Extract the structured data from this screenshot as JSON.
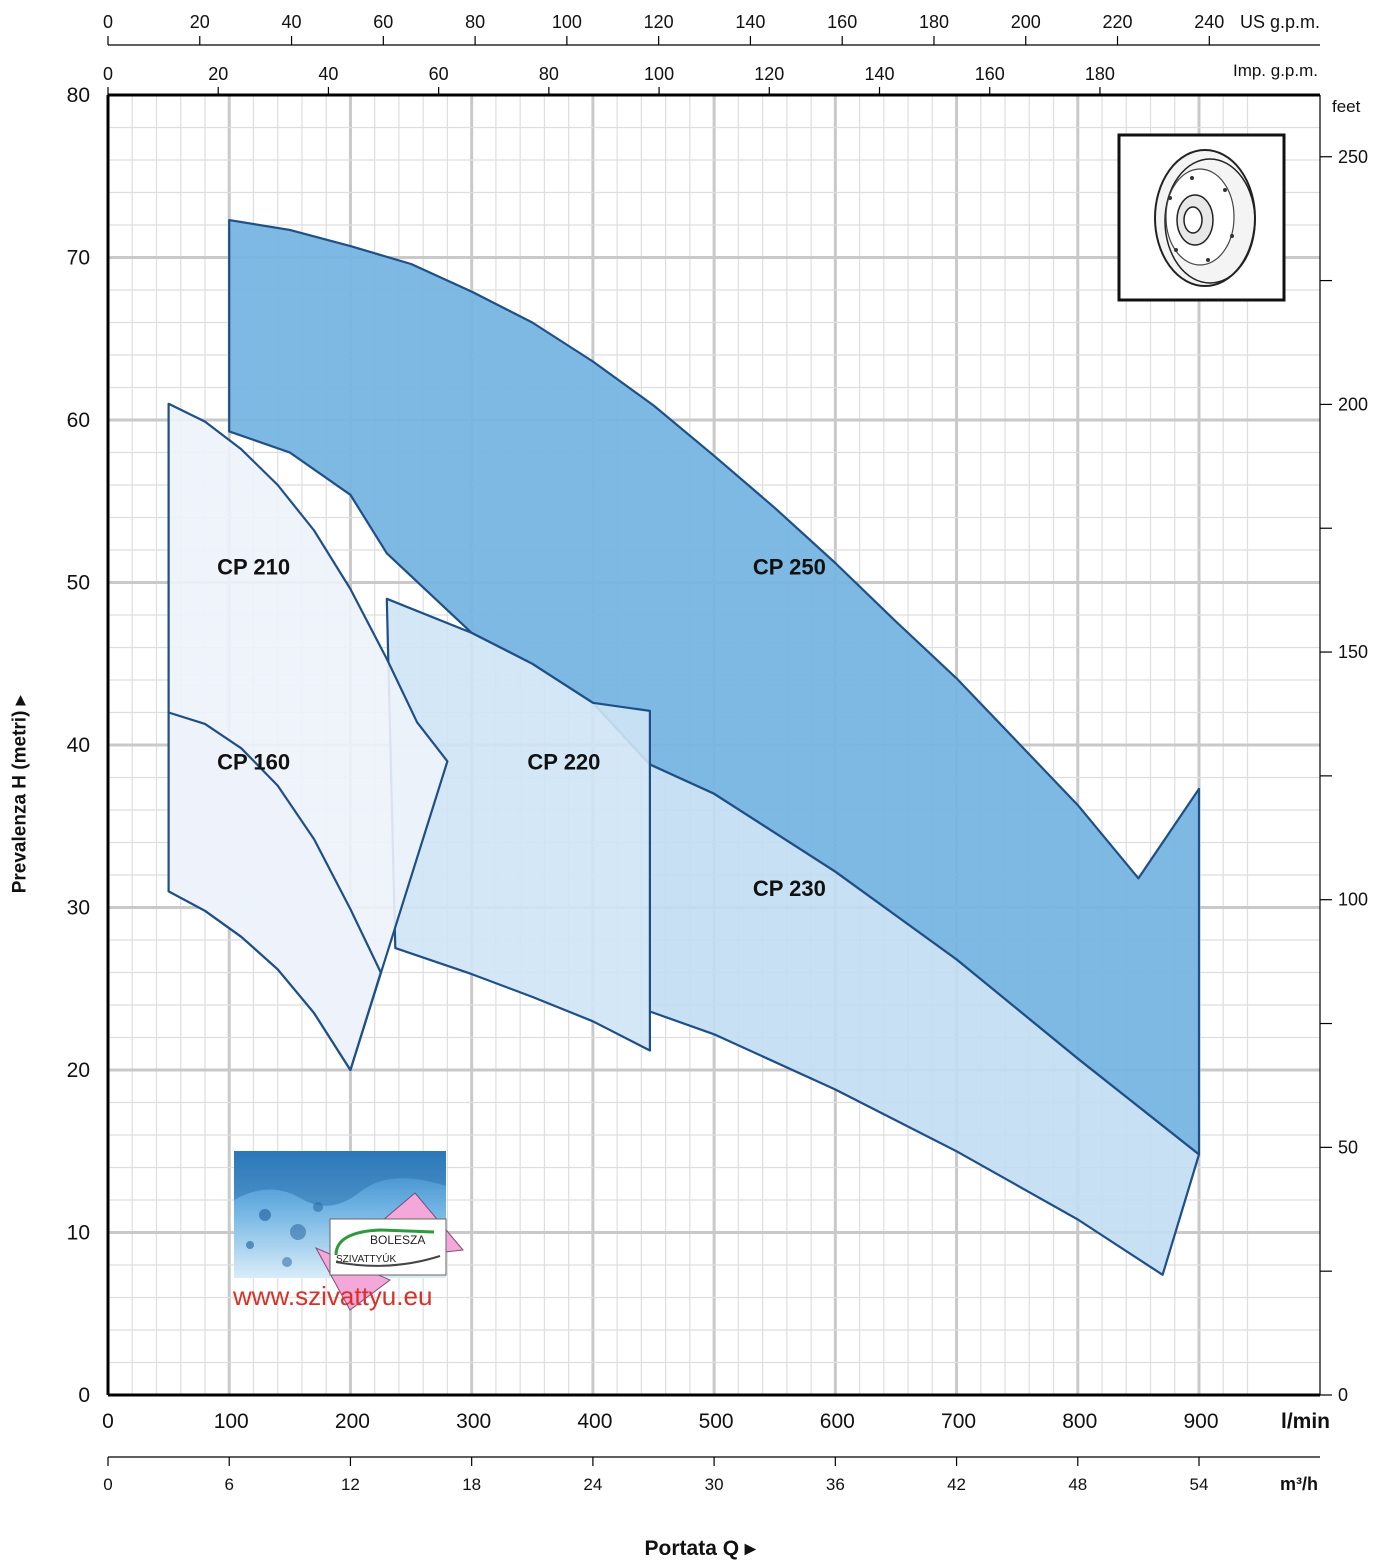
{
  "chart_data": {
    "type": "area",
    "title": "",
    "xlabel": "Portata Q",
    "ylabel": "Prevalenza H (metri)",
    "x_unit": "l/min",
    "y_unit": "m",
    "xlim": [
      0,
      950
    ],
    "ylim": [
      0,
      80
    ],
    "grid": true,
    "x_ticks": [
      "0",
      "100",
      "200",
      "300",
      "400",
      "500",
      "600",
      "700",
      "800",
      "900"
    ],
    "y_ticks": [
      "0",
      "10",
      "20",
      "30",
      "40",
      "50",
      "60",
      "70",
      "80"
    ],
    "secondary_axes": {
      "us_gpm": {
        "unit": "US g.p.m.",
        "ticks": [
          0,
          20,
          40,
          60,
          80,
          100,
          120,
          140,
          160,
          180,
          200,
          220,
          240
        ]
      },
      "imp_gpm": {
        "unit": "Imp. g.p.m.",
        "ticks": [
          0,
          20,
          40,
          60,
          80,
          100,
          120,
          140,
          160,
          180
        ]
      },
      "feet": {
        "unit": "feet",
        "ticks": [
          0,
          50,
          100,
          150,
          200,
          250
        ]
      },
      "m3h": {
        "unit": "m³/h",
        "ticks": [
          0,
          6,
          12,
          18,
          24,
          30,
          36,
          42,
          48,
          54
        ]
      }
    },
    "series": [
      {
        "name": "CP 160",
        "color": "#edf3fb",
        "upper": [
          [
            50,
            42
          ],
          [
            80,
            41.3
          ],
          [
            110,
            39.8
          ],
          [
            140,
            37.5
          ],
          [
            170,
            34.2
          ],
          [
            200,
            29.9
          ],
          [
            225,
            26
          ]
        ],
        "lower": [
          [
            50,
            31
          ],
          [
            80,
            29.8
          ],
          [
            110,
            28.2
          ],
          [
            140,
            26.2
          ],
          [
            170,
            23.5
          ],
          [
            200,
            20
          ]
        ]
      },
      {
        "name": "CP 210",
        "color": "#edf3fb",
        "upper": [
          [
            50,
            61
          ],
          [
            80,
            59.9
          ],
          [
            110,
            58.2
          ],
          [
            140,
            56
          ],
          [
            170,
            53.2
          ],
          [
            200,
            49.6
          ],
          [
            230,
            45.3
          ],
          [
            255,
            41.4
          ],
          [
            280,
            39
          ]
        ],
        "lower": [
          [
            50,
            31
          ],
          [
            80,
            29.8
          ],
          [
            110,
            28.2
          ],
          [
            140,
            26.2
          ],
          [
            170,
            23.5
          ],
          [
            200,
            20
          ]
        ]
      },
      {
        "name": "CP 220",
        "color": "#cfe4f5",
        "upper": [
          [
            230,
            49
          ],
          [
            300,
            46.9
          ],
          [
            350,
            45
          ],
          [
            400,
            42.6
          ],
          [
            447,
            42.1
          ]
        ],
        "lower": [
          [
            237,
            27.5
          ],
          [
            300,
            25.9
          ],
          [
            350,
            24.5
          ],
          [
            400,
            23
          ],
          [
            447,
            21.2
          ]
        ]
      },
      {
        "name": "CP 230",
        "color": "#c2ddf2",
        "upper": [
          [
            447,
            38.8
          ],
          [
            500,
            37
          ],
          [
            600,
            32.2
          ],
          [
            700,
            26.8
          ],
          [
            800,
            20.7
          ],
          [
            900,
            14.8
          ]
        ],
        "lower": [
          [
            447,
            23.6
          ],
          [
            500,
            22.2
          ],
          [
            600,
            18.8
          ],
          [
            700,
            15
          ],
          [
            800,
            10.8
          ],
          [
            870,
            7.4
          ]
        ]
      },
      {
        "name": "CP 250",
        "color": "#76b5e0",
        "upper": [
          [
            100,
            72.3
          ],
          [
            150,
            71.7
          ],
          [
            200,
            70.7
          ],
          [
            250,
            69.6
          ],
          [
            300,
            67.9
          ],
          [
            350,
            66
          ],
          [
            400,
            63.6
          ],
          [
            450,
            60.9
          ],
          [
            500,
            57.8
          ],
          [
            550,
            54.6
          ],
          [
            600,
            51.2
          ],
          [
            650,
            47.6
          ],
          [
            700,
            44.1
          ],
          [
            750,
            40.2
          ],
          [
            800,
            36.3
          ],
          [
            850,
            31.8
          ],
          [
            900,
            37.3
          ]
        ],
        "lower": [
          [
            100,
            59.3
          ],
          [
            150,
            58
          ],
          [
            200,
            55.4
          ],
          [
            230,
            51.8
          ],
          [
            300,
            46.9
          ],
          [
            350,
            45
          ],
          [
            400,
            42.6
          ],
          [
            447,
            38.8
          ],
          [
            500,
            37
          ],
          [
            600,
            32.2
          ],
          [
            700,
            26.8
          ],
          [
            800,
            20.7
          ],
          [
            900,
            14.8
          ]
        ]
      }
    ],
    "region_labels": [
      {
        "text": "CP 210",
        "x": 90,
        "y": 50.5
      },
      {
        "text": "CP 160",
        "x": 90,
        "y": 38.5
      },
      {
        "text": "CP 220",
        "x": 346,
        "y": 38.5
      },
      {
        "text": "CP 250",
        "x": 532,
        "y": 50.5
      },
      {
        "text": "CP 230",
        "x": 532,
        "y": 30.7
      }
    ]
  },
  "watermark": {
    "brand_line1": "BOLESZA",
    "brand_line2": "SZIVATTYÚK",
    "url": "www.szivattyu.eu"
  },
  "inset": {
    "icon": "impeller-icon"
  }
}
